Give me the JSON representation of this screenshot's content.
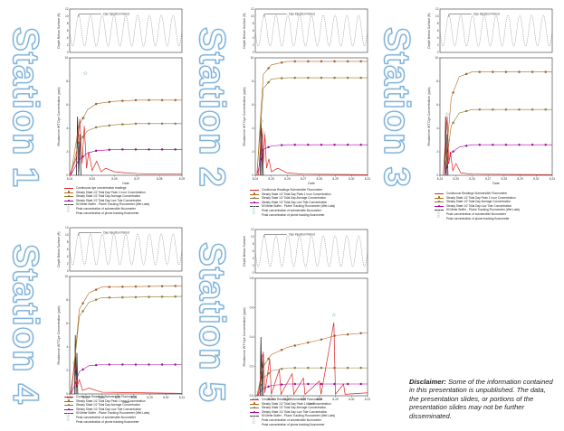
{
  "stations": [
    "Station 1",
    "Station 2",
    "Station 3",
    "Station 4",
    "Station 5"
  ],
  "disclaimer": {
    "label": "Disclaimer:",
    "text": "Some of the information contained in this presentation is unpublished. The data, the presentation slides, or portions of the presentation slides may not be further disseminated."
  },
  "legend": {
    "s1": [
      "Continuous dye concentration readings",
      "Steady State 1/2 Tidal Day Peak 1 hour Concentration",
      "Steady State 1/2 Tidal Day Average Concentration",
      "Steady State 1/2 Tidal Day Low Tide Concentration",
      "50 Meter Buffer - Plume Tracking Fluorometer (Wet Labs)",
      "Peak concentration of submersible fluorometer",
      "Peak concentration of plume tracking fluorometer"
    ],
    "s2": [
      "Continuous Readings Submersible Fluorometer",
      "Steady State 1/2 Tidal Day Peak 1 hour Concentration",
      "Steady State 1/2 Tidal Day Average Concentration",
      "Steady State 1/2 Tidal Day Low Tide Concentration",
      "50 Meter Buffer - Plume Tracking Fluorometer (Wet Labs)",
      "Peak concentration of submersible fluorometer",
      "Peak concentration of plume tracking fluorometer"
    ],
    "s3": [
      "Continuous Readings Submersible Fluorometer",
      "Steady State 1/2 Tidal Day Peak 1 hour Concentration",
      "Steady State 1/2 Tidal Day Average Concentration",
      "Steady State 1/2 Tidal Day Low Tide Concentration",
      "50 Meter Buffer - Plume Tracking Fluorometer (Wet Labs)",
      "Peak concentration of submersible fluorometer",
      "Peak concentration of plume tracking fluorometer"
    ],
    "s4": [
      "Continuous Readings Submersible Fluorometer",
      "Steady State 1/2 Tidal Day Peak 1 hour Concentration",
      "Steady State 1/2 Tidal Day Average Concentration",
      "Steady State 1/2 Tidal Day Low Tide Concentration",
      "50 Meter Buffer - Plume Tracking Fluorometer (Wet Labs)",
      "Peak concentration of submersible fluorometer",
      "Peak concentration of plume tracking fluorometer"
    ],
    "s5": [
      "Continuous Readings Submersible Fluorometer",
      "Steady State 1/2 Tidal Day Peak 1 hour Concentration",
      "Steady State 1/2 Tidal Day Average Concentration",
      "Steady State 1/2 Tidal Day Low Tide Concentration",
      "50 Meter Buffer - Plume Tracking Fluorometer (Wet Labs)",
      "Peak concentration of submersible fluorometer",
      "Peak concentration of plume tracking fluorometer"
    ]
  },
  "legend_colors": [
    "#d22",
    "#b5651d",
    "#8a7a2a",
    "#b000b0",
    "#444",
    "#2a9d3a",
    "#2a9d3a"
  ],
  "chart_data": [
    {
      "id": "s1",
      "type": "line",
      "ylabel": "Rhodamine WT Dye Concentration (ppb)",
      "xlabel": "Date",
      "top_ylabel": "Depth Below Surface (ft)",
      "top_annotation": "Dye Injection Period",
      "ylim": [
        0,
        10
      ],
      "yticks": [
        "0",
        "2",
        "4",
        "6",
        "8",
        "10"
      ],
      "top_yticks": [
        "0",
        "2",
        "4",
        "6",
        "8",
        "10",
        "12"
      ],
      "xticks": [
        "8-04",
        "8-05",
        "8-06",
        "8-07",
        "8-08",
        "8-09"
      ],
      "series": [
        {
          "role": "peak",
          "values": [
            [
              0.05,
              0
            ],
            [
              0.4,
              4.2
            ],
            [
              0.8,
              5.6
            ],
            [
              1.2,
              6.1
            ],
            [
              2,
              6.3
            ],
            [
              3,
              6.4
            ],
            [
              5,
              6.4
            ]
          ]
        },
        {
          "role": "avg",
          "values": [
            [
              0.05,
              0
            ],
            [
              0.4,
              2.8
            ],
            [
              0.8,
              3.8
            ],
            [
              1.2,
              4.1
            ],
            [
              2,
              4.3
            ],
            [
              3,
              4.4
            ],
            [
              5,
              4.4
            ]
          ]
        },
        {
          "role": "low",
          "values": [
            [
              0.05,
              0
            ],
            [
              0.4,
              1.3
            ],
            [
              0.8,
              1.9
            ],
            [
              1.2,
              2.1
            ],
            [
              2,
              2.2
            ],
            [
              3,
              2.2
            ],
            [
              5,
              2.2
            ]
          ]
        },
        {
          "role": "continuous",
          "values": [
            [
              0,
              0
            ],
            [
              0.3,
              1.5
            ],
            [
              0.45,
              4.8
            ],
            [
              0.55,
              1
            ],
            [
              0.65,
              4.2
            ],
            [
              0.75,
              0.6
            ],
            [
              0.85,
              2
            ],
            [
              1,
              0.4
            ],
            [
              1.2,
              1.2
            ],
            [
              1.4,
              0.3
            ],
            [
              1.6,
              0.6
            ],
            [
              2,
              0.3
            ],
            [
              2.5,
              0.2
            ],
            [
              3,
              0.15
            ],
            [
              4,
              0.1
            ],
            [
              5,
              0.1
            ]
          ]
        }
      ],
      "peak_sub": [
        0.7,
        8.7
      ],
      "peak_plume": [
        0.62,
        4.9
      ]
    },
    {
      "id": "s2",
      "type": "line",
      "ylabel": "Rhodamine WT Dye Concentration (ppb)",
      "xlabel": "Date",
      "top_ylabel": "Depth Below Surface (ft)",
      "top_annotation": "Dye Injection Period",
      "ylim": [
        0,
        10
      ],
      "yticks": [
        "0",
        "2",
        "4",
        "6",
        "8",
        "10"
      ],
      "top_yticks": [
        "0",
        "2",
        "4",
        "6",
        "8",
        "10",
        "12"
      ],
      "xticks": [
        "8-04",
        "8-25",
        "8-26",
        "8-27",
        "8-28",
        "8-29",
        "8-30",
        "8-31"
      ],
      "series": [
        {
          "role": "peak",
          "values": [
            [
              0.1,
              0
            ],
            [
              0.5,
              8.6
            ],
            [
              1,
              9.4
            ],
            [
              2,
              9.7
            ],
            [
              7,
              9.7
            ]
          ]
        },
        {
          "role": "avg",
          "values": [
            [
              0.1,
              0
            ],
            [
              0.5,
              7.4
            ],
            [
              1,
              8.2
            ],
            [
              2,
              8.3
            ],
            [
              7,
              8.3
            ]
          ]
        },
        {
          "role": "low",
          "values": [
            [
              0.1,
              0
            ],
            [
              0.5,
              2.2
            ],
            [
              1,
              2.5
            ],
            [
              2,
              2.6
            ],
            [
              7,
              2.6
            ]
          ]
        },
        {
          "role": "continuous",
          "values": [
            [
              0.2,
              0
            ],
            [
              0.4,
              4
            ],
            [
              0.5,
              1
            ],
            [
              0.6,
              3.5
            ],
            [
              0.7,
              0.6
            ],
            [
              0.85,
              1.4
            ],
            [
              1,
              0.3
            ],
            [
              1.4,
              0.6
            ],
            [
              2,
              0.2
            ],
            [
              3,
              0.1
            ],
            [
              7,
              0.05
            ]
          ]
        }
      ],
      "peak_sub": [
        0.4,
        4.6
      ],
      "peak_plume": [
        0.55,
        3.6
      ]
    },
    {
      "id": "s3",
      "type": "line",
      "ylabel": "Rhodamine WT Dye Concentration (ppb)",
      "xlabel": "Date",
      "top_ylabel": "Depth Below Surface (ft)",
      "top_annotation": "Dye Injection Period",
      "ylim": [
        0,
        10
      ],
      "yticks": [
        "0",
        "2",
        "4",
        "6",
        "8",
        "10"
      ],
      "top_yticks": [
        "0",
        "2",
        "4",
        "6",
        "8",
        "10",
        "12"
      ],
      "xticks": [
        "8-24",
        "8-25",
        "8-26",
        "8-27",
        "8-28",
        "8-29",
        "8-30",
        "8-31"
      ],
      "series": [
        {
          "role": "peak",
          "values": [
            [
              0.3,
              0
            ],
            [
              0.7,
              6.6
            ],
            [
              1.2,
              8.4
            ],
            [
              2,
              8.8
            ],
            [
              7,
              8.8
            ]
          ]
        },
        {
          "role": "avg",
          "values": [
            [
              0.3,
              0
            ],
            [
              0.7,
              4.2
            ],
            [
              1.2,
              5.3
            ],
            [
              2,
              5.6
            ],
            [
              7,
              5.6
            ]
          ]
        },
        {
          "role": "low",
          "values": [
            [
              0.3,
              0
            ],
            [
              0.7,
              1.9
            ],
            [
              1.2,
              2.4
            ],
            [
              2,
              2.6
            ],
            [
              7,
              2.6
            ]
          ]
        },
        {
          "role": "continuous",
          "values": [
            [
              0.2,
              0
            ],
            [
              0.45,
              5
            ],
            [
              0.55,
              1
            ],
            [
              0.65,
              2
            ],
            [
              0.8,
              0.4
            ],
            [
              1,
              1
            ],
            [
              1.3,
              0.2
            ],
            [
              2,
              0.1
            ],
            [
              7,
              0.05
            ]
          ]
        }
      ],
      "peak_sub": [
        0.45,
        5.2
      ],
      "peak_plume": [
        0.5,
        3
      ]
    },
    {
      "id": "s4",
      "type": "line",
      "ylabel": "Rhodamine WT Dye Concentration (ppb)",
      "xlabel": "Date",
      "top_ylabel": "Depth Below Surface (ft)",
      "top_annotation": "Dye Injection Period",
      "ylim": [
        0,
        10
      ],
      "yticks": [
        "0",
        "2",
        "4",
        "6",
        "8",
        "10"
      ],
      "top_yticks": [
        "0",
        "2",
        "4",
        "6",
        "8",
        "10",
        "12"
      ],
      "xticks": [
        "8-24",
        "8-25",
        "8-26",
        "8-27",
        "8-28",
        "8-29",
        "8-30",
        "8-31"
      ],
      "series": [
        {
          "role": "peak",
          "values": [
            [
              0.1,
              0
            ],
            [
              0.6,
              7.2
            ],
            [
              1.2,
              8.6
            ],
            [
              2,
              9.1
            ],
            [
              7,
              9.2
            ]
          ]
        },
        {
          "role": "avg",
          "values": [
            [
              0.1,
              0
            ],
            [
              0.6,
              6.6
            ],
            [
              1.2,
              7.8
            ],
            [
              2,
              8.2
            ],
            [
              7,
              8.3
            ]
          ]
        },
        {
          "role": "low",
          "values": [
            [
              0.1,
              0
            ],
            [
              0.6,
              1.9
            ],
            [
              1.2,
              2.4
            ],
            [
              2,
              2.5
            ],
            [
              7,
              2.5
            ]
          ]
        },
        {
          "role": "continuous",
          "values": [
            [
              0.05,
              0
            ],
            [
              0.3,
              2.5
            ],
            [
              0.45,
              0.6
            ],
            [
              0.6,
              1.2
            ],
            [
              0.8,
              0.3
            ],
            [
              1.2,
              0.5
            ],
            [
              2,
              0.15
            ],
            [
              7,
              0.05
            ]
          ]
        }
      ],
      "peak_sub": [
        0.28,
        2.7
      ],
      "peak_plume": [
        0.35,
        1.6
      ]
    },
    {
      "id": "s5",
      "type": "line",
      "ylabel": "Rhodamine WT Dye Concentration (ppb)",
      "xlabel": "Date",
      "top_ylabel": "Depth Below Surface",
      "top_annotation": "Dye Injection Period",
      "ylim": [
        0,
        0.8
      ],
      "yticks": [
        "0.0",
        "0.2",
        "0.4",
        "0.6",
        "0.8"
      ],
      "top_yticks": [
        "0",
        "2",
        "4",
        "6",
        "8",
        "10",
        "12"
      ],
      "xticks": [
        "8-24",
        "8-25",
        "8-26",
        "8-27",
        "8-28",
        "8-29",
        "8-30",
        "8-31"
      ],
      "series": [
        {
          "role": "peak",
          "values": [
            [
              0.1,
              0
            ],
            [
              0.5,
              0.2
            ],
            [
              1,
              0.28
            ],
            [
              2,
              0.33
            ],
            [
              4,
              0.38
            ],
            [
              5,
              0.41
            ],
            [
              7,
              0.43
            ]
          ]
        },
        {
          "role": "avg",
          "values": [
            [
              0.1,
              0
            ],
            [
              0.5,
              0.12
            ],
            [
              1,
              0.17
            ],
            [
              2,
              0.19
            ],
            [
              7,
              0.19
            ]
          ]
        },
        {
          "role": "low",
          "values": [
            [
              0.1,
              0
            ],
            [
              0.5,
              0.05
            ],
            [
              1,
              0.07
            ],
            [
              2,
              0.08
            ],
            [
              7,
              0.08
            ]
          ]
        },
        {
          "role": "continuous",
          "values": [
            [
              0.2,
              0
            ],
            [
              0.5,
              0.3
            ],
            [
              0.6,
              0.02
            ],
            [
              0.9,
              0.25
            ],
            [
              1,
              0.01
            ],
            [
              1.5,
              0.18
            ],
            [
              1.6,
              0.01
            ],
            [
              2.3,
              0.15
            ],
            [
              2.4,
              0.01
            ],
            [
              3,
              0.12
            ],
            [
              3.1,
              0.01
            ],
            [
              4,
              0.1
            ],
            [
              4.1,
              0.01
            ],
            [
              4.9,
              0.5
            ],
            [
              5,
              0.01
            ],
            [
              5.5,
              0.08
            ],
            [
              5.6,
              0.01
            ],
            [
              7,
              0.02
            ]
          ]
        }
      ],
      "peak_sub": [
        4.9,
        0.55
      ],
      "peak_plume": [
        0.55,
        0.22
      ]
    }
  ]
}
